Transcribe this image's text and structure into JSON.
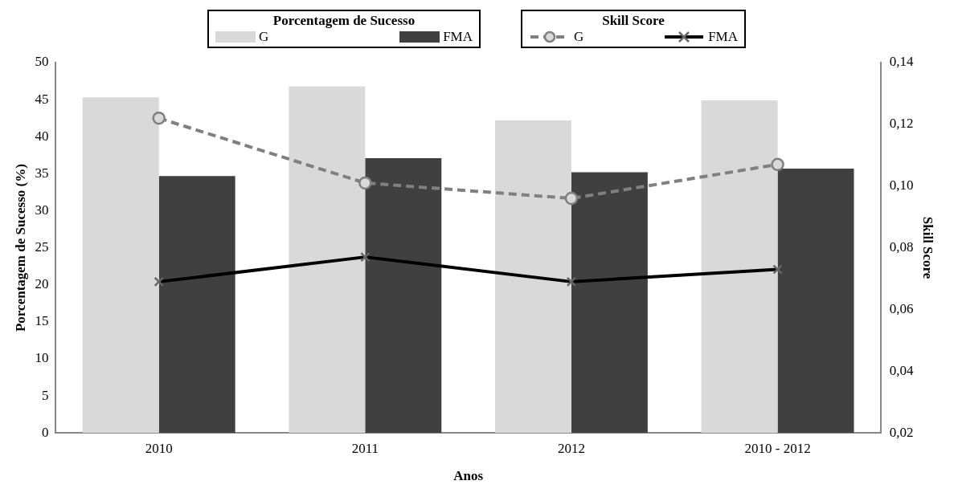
{
  "chart_data": {
    "type": "bar",
    "xlabel": "Anos",
    "ylabel": "Porcentagem de Sucesso (%)",
    "y2label": "Skill Score",
    "legend_title": "Porcentagem de Sucesso",
    "annotations": [
      "Skill Score"
    ],
    "categories": [
      "2010",
      "2011",
      "2012",
      "2010 - 2012"
    ],
    "series": [
      {
        "name": "G",
        "color": "#d9d9d9",
        "values": [
          45.3,
          46.8,
          42.2,
          44.9
        ]
      },
      {
        "name": "FMA",
        "color": "#404040",
        "values": [
          34.7,
          37.1,
          35.2,
          35.7
        ]
      },
      {
        "name": "G",
        "type": "line",
        "axis": "y2",
        "color": "#808080",
        "line_style": "dashed",
        "marker": "circle",
        "values": [
          0.122,
          0.101,
          0.096,
          0.107
        ]
      },
      {
        "name": "FMA",
        "type": "line",
        "axis": "y2",
        "color": "#000000",
        "line_style": "solid",
        "marker": "cross",
        "values": [
          0.069,
          0.077,
          0.069,
          0.073
        ]
      }
    ],
    "ylim": [
      0,
      50
    ],
    "yticks": [
      0,
      5,
      10,
      15,
      20,
      25,
      30,
      35,
      40,
      45,
      50
    ],
    "y2lim": [
      0.02,
      0.14
    ],
    "y2ticks": [
      {
        "value": 0.02,
        "label": "0,02"
      },
      {
        "value": 0.04,
        "label": "0,04"
      },
      {
        "value": 0.06,
        "label": "0,06"
      },
      {
        "value": 0.08,
        "label": "0,08"
      },
      {
        "value": 0.1,
        "label": "0,10"
      },
      {
        "value": 0.12,
        "label": "0,12"
      },
      {
        "value": 0.14,
        "label": "0,14"
      }
    ],
    "grid": false,
    "legend": "top"
  }
}
